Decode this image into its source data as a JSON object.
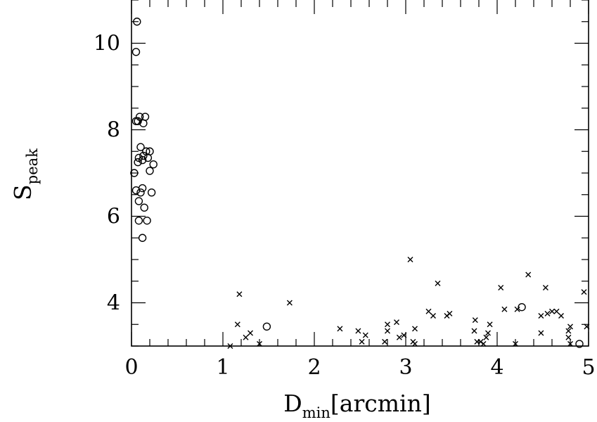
{
  "chart_data": {
    "type": "scatter",
    "title": "",
    "xlabel": {
      "main": "D",
      "sub": "min",
      "suffix": "[arcmin]"
    },
    "ylabel": {
      "main": "S",
      "sub": "peak"
    },
    "xlim": [
      0,
      5
    ],
    "ylim": [
      3,
      11
    ],
    "x_ticks": [
      0,
      1,
      2,
      3,
      4,
      5
    ],
    "y_ticks": [
      4,
      6,
      8,
      10
    ],
    "x_minor_step": 0.2,
    "y_minor_step": 0.5,
    "grid": false,
    "series": [
      {
        "marker": "circle",
        "points": [
          [
            0.06,
            10.5
          ],
          [
            0.05,
            9.8
          ],
          [
            0.07,
            8.2
          ],
          [
            0.09,
            8.3
          ],
          [
            0.15,
            8.3
          ],
          [
            0.13,
            8.15
          ],
          [
            0.05,
            8.2
          ],
          [
            0.1,
            7.6
          ],
          [
            0.16,
            7.5
          ],
          [
            0.2,
            7.5
          ],
          [
            0.13,
            7.4
          ],
          [
            0.18,
            7.35
          ],
          [
            0.08,
            7.35
          ],
          [
            0.12,
            7.3
          ],
          [
            0.07,
            7.25
          ],
          [
            0.24,
            7.2
          ],
          [
            0.2,
            7.05
          ],
          [
            0.03,
            7.0
          ],
          [
            0.12,
            6.65
          ],
          [
            0.05,
            6.6
          ],
          [
            0.1,
            6.55
          ],
          [
            0.22,
            6.55
          ],
          [
            0.08,
            6.35
          ],
          [
            0.14,
            6.2
          ],
          [
            0.08,
            5.9
          ],
          [
            0.17,
            5.9
          ],
          [
            0.12,
            5.5
          ],
          [
            1.48,
            3.45
          ],
          [
            4.27,
            3.9
          ],
          [
            4.9,
            3.05
          ]
        ]
      },
      {
        "marker": "cross",
        "points": [
          [
            1.08,
            3.0
          ],
          [
            1.16,
            3.5
          ],
          [
            1.18,
            4.2
          ],
          [
            1.25,
            3.2
          ],
          [
            1.3,
            3.3
          ],
          [
            1.4,
            3.05
          ],
          [
            1.73,
            4.0
          ],
          [
            2.28,
            3.4
          ],
          [
            2.48,
            3.35
          ],
          [
            2.52,
            3.1
          ],
          [
            2.56,
            3.25
          ],
          [
            2.77,
            3.1
          ],
          [
            2.8,
            3.35
          ],
          [
            2.8,
            3.5
          ],
          [
            2.9,
            3.55
          ],
          [
            2.93,
            3.2
          ],
          [
            2.98,
            3.25
          ],
          [
            3.05,
            5.0
          ],
          [
            3.08,
            3.1
          ],
          [
            3.1,
            3.05
          ],
          [
            3.1,
            3.4
          ],
          [
            3.25,
            3.8
          ],
          [
            3.3,
            3.7
          ],
          [
            3.35,
            4.45
          ],
          [
            3.45,
            3.7
          ],
          [
            3.48,
            3.75
          ],
          [
            3.75,
            3.35
          ],
          [
            3.76,
            3.6
          ],
          [
            3.78,
            3.1
          ],
          [
            3.82,
            3.1
          ],
          [
            3.85,
            3.05
          ],
          [
            3.88,
            3.2
          ],
          [
            3.9,
            3.3
          ],
          [
            3.92,
            3.5
          ],
          [
            4.04,
            4.35
          ],
          [
            4.08,
            3.85
          ],
          [
            4.2,
            3.05
          ],
          [
            4.22,
            3.85
          ],
          [
            4.34,
            4.65
          ],
          [
            4.48,
            3.3
          ],
          [
            4.48,
            3.7
          ],
          [
            4.53,
            4.35
          ],
          [
            4.55,
            3.75
          ],
          [
            4.6,
            3.8
          ],
          [
            4.65,
            3.8
          ],
          [
            4.7,
            3.7
          ],
          [
            4.78,
            3.2
          ],
          [
            4.78,
            3.35
          ],
          [
            4.8,
            3.45
          ],
          [
            4.8,
            3.05
          ],
          [
            4.95,
            4.25
          ],
          [
            4.98,
            3.45
          ]
        ]
      }
    ]
  }
}
